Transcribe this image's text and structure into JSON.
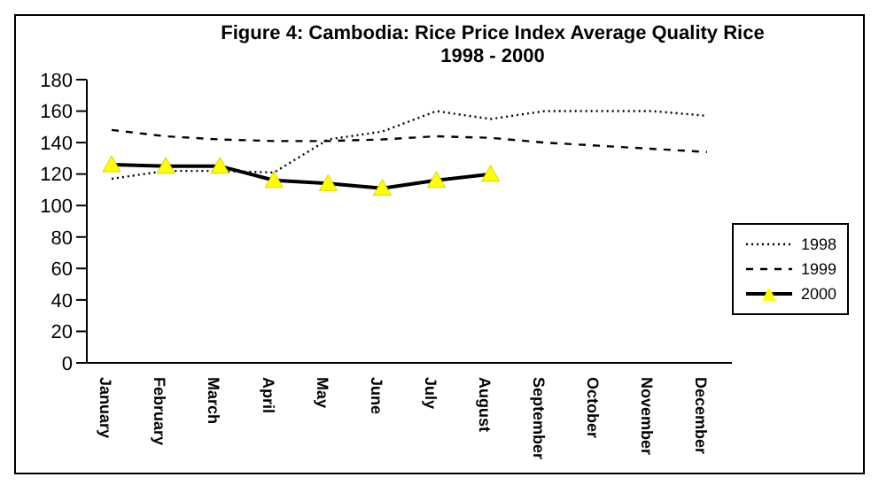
{
  "chart_data": {
    "type": "line",
    "title": "Figure 4: Cambodia: Rice Price Index Average Quality Rice\n1998 - 2000",
    "categories": [
      "January",
      "February",
      "March",
      "April",
      "May",
      "June",
      "July",
      "August",
      "September",
      "October",
      "November",
      "December"
    ],
    "series": [
      {
        "name": "1998",
        "color": "#000000",
        "line_style": "dotted",
        "marker": "none",
        "values": [
          117,
          122,
          122,
          121,
          142,
          147,
          160,
          155,
          160,
          160,
          160,
          157
        ]
      },
      {
        "name": "1999",
        "color": "#000000",
        "line_style": "dashed",
        "marker": "none",
        "values": [
          148,
          144,
          142,
          141,
          141,
          142,
          144,
          143,
          140,
          138,
          136,
          134
        ]
      },
      {
        "name": "2000",
        "color": "#000000",
        "line_style": "solid",
        "marker": "triangle",
        "values": [
          126,
          125,
          125,
          116,
          114,
          111,
          116,
          120,
          null,
          null,
          null,
          null
        ]
      }
    ],
    "ylim": [
      0,
      180
    ],
    "yticks": [
      0,
      20,
      40,
      60,
      80,
      100,
      120,
      140,
      160,
      180
    ],
    "grid": false,
    "legend": "right"
  }
}
